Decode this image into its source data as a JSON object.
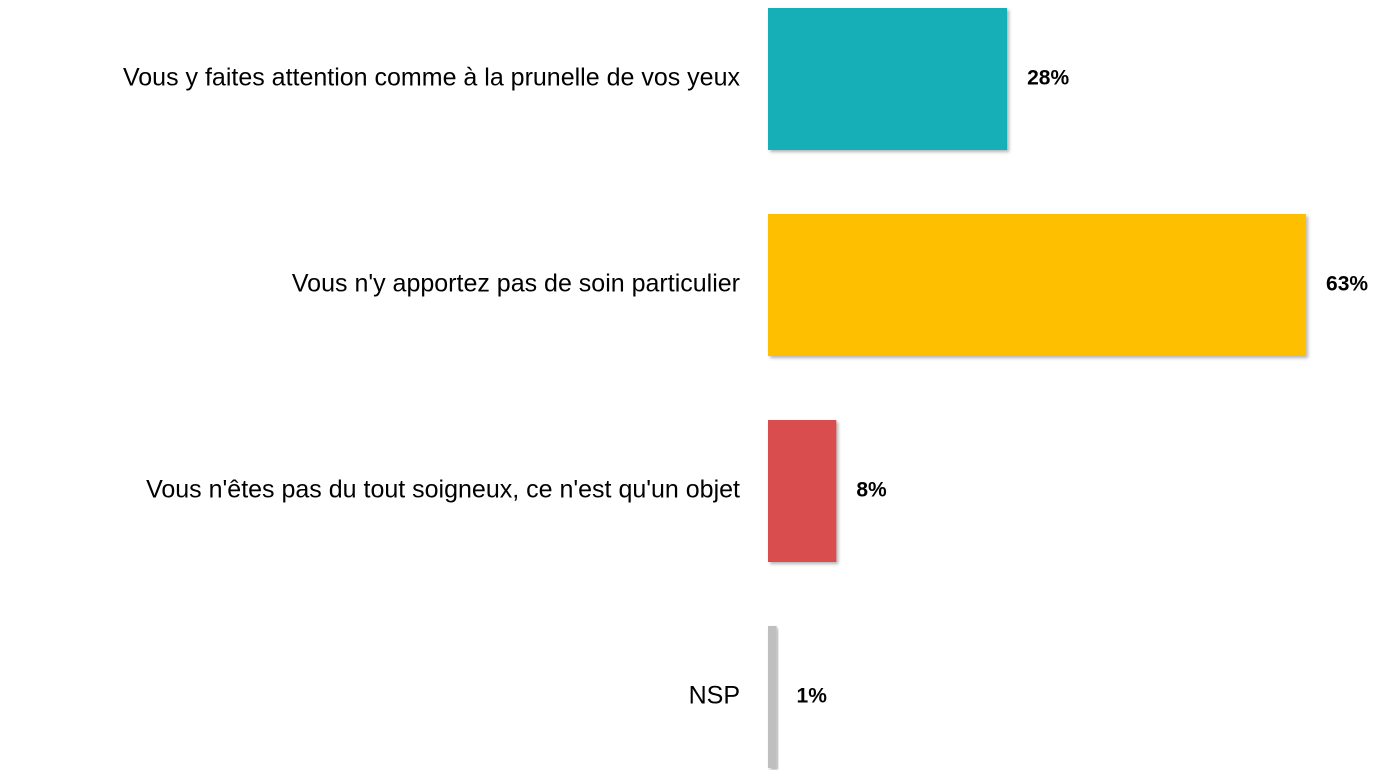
{
  "chart_data": {
    "type": "bar",
    "categories": [
      "Vous y faites attention comme à la prunelle de vos yeux",
      "Vous n'y apportez pas de soin particulier",
      "Vous n'êtes pas du tout soigneux, ce n'est qu'un objet",
      "NSP"
    ],
    "values": [
      28,
      63,
      8,
      1
    ],
    "value_labels": [
      "28%",
      "63%",
      "8%",
      "1%"
    ],
    "colors": [
      "#14aeb7",
      "#fdbf00",
      "#d94d4f",
      "#bfbfbf"
    ]
  }
}
